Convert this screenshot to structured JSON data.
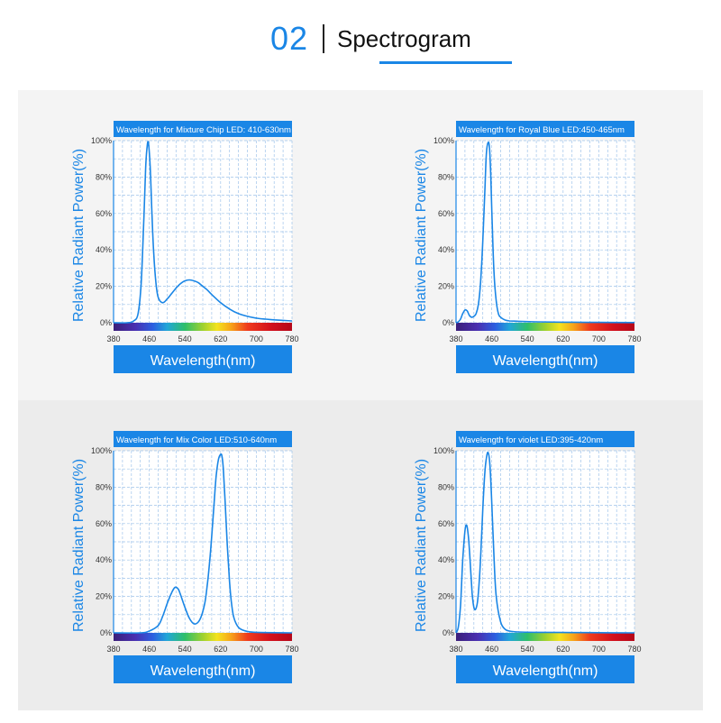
{
  "header": {
    "number": "02",
    "title": "Spectrogram"
  },
  "colors": {
    "accent": "#1a86e6",
    "panel_bg_light": "#f4f4f4",
    "panel_bg_dark": "#ececec"
  },
  "chart_data": [
    {
      "type": "line",
      "title": "Wavelength for Mixture Chip LED: 410-630nm",
      "xlabel": "Wavelength(nm)",
      "ylabel": "Relative Radiant Power(%)",
      "xlim": [
        380,
        780
      ],
      "ylim": [
        0,
        100
      ],
      "xticks": [
        "380",
        "460",
        "540",
        "620",
        "700",
        "780"
      ],
      "yticks": [
        "0%",
        "20%",
        "40%",
        "60%",
        "80%",
        "100%"
      ],
      "grid": true,
      "series": [
        {
          "x": [
            380,
            410,
            425,
            435,
            442,
            448,
            452,
            455,
            458,
            462,
            466,
            470,
            475,
            480,
            490,
            500,
            510,
            520,
            530,
            540,
            550,
            560,
            570,
            580,
            590,
            600,
            620,
            640,
            660,
            680,
            700,
            720,
            740,
            760,
            780
          ],
          "y": [
            0,
            0,
            1,
            5,
            22,
            58,
            85,
            96,
            99,
            86,
            60,
            38,
            22,
            14,
            11,
            13,
            16,
            19,
            21.5,
            23,
            23.5,
            23,
            22,
            20,
            18,
            15.5,
            11,
            7.5,
            5,
            3.5,
            2.5,
            2,
            1.6,
            1.3,
            1
          ]
        }
      ]
    },
    {
      "type": "line",
      "title": "Wavelength for Royal Blue LED:450-465nm",
      "xlabel": "Wavelength(nm)",
      "ylabel": "Relative Radiant Power(%)",
      "xlim": [
        380,
        780
      ],
      "ylim": [
        0,
        100
      ],
      "xticks": [
        "380",
        "460",
        "540",
        "620",
        "700",
        "780"
      ],
      "yticks": [
        "0%",
        "20%",
        "40%",
        "60%",
        "80%",
        "100%"
      ],
      "grid": true,
      "series": [
        {
          "x": [
            380,
            385,
            390,
            395,
            400,
            405,
            410,
            415,
            420,
            425,
            430,
            435,
            440,
            445,
            448,
            452,
            455,
            458,
            461,
            465,
            470,
            475,
            480,
            490,
            500,
            520,
            560,
            620,
            700,
            780
          ],
          "y": [
            0,
            0.5,
            2,
            5,
            7,
            6.5,
            4,
            3,
            3.5,
            5,
            10,
            22,
            45,
            75,
            93,
            99,
            96,
            80,
            55,
            28,
            12,
            5,
            3,
            1.5,
            1,
            0.8,
            0.5,
            0.3,
            0.2,
            0.1
          ]
        }
      ]
    },
    {
      "type": "line",
      "title": "Wavelength for Mix Color LED:510-640nm",
      "xlabel": "Wavelength(nm)",
      "ylabel": "Relative Radiant Power(%)",
      "xlim": [
        380,
        780
      ],
      "ylim": [
        0,
        100
      ],
      "xticks": [
        "380",
        "460",
        "540",
        "620",
        "700",
        "780"
      ],
      "yticks": [
        "0%",
        "20%",
        "40%",
        "60%",
        "80%",
        "100%"
      ],
      "grid": true,
      "series": [
        {
          "x": [
            380,
            440,
            460,
            480,
            490,
            500,
            510,
            518,
            525,
            530,
            540,
            550,
            560,
            570,
            578,
            585,
            590,
            595,
            600,
            605,
            610,
            615,
            620,
            623,
            626,
            630,
            635,
            640,
            645,
            650,
            660,
            670,
            680,
            700,
            780
          ],
          "y": [
            0,
            0,
            1,
            4,
            9,
            16,
            22,
            25,
            24,
            21,
            14,
            8,
            5,
            6,
            10,
            17,
            26,
            38,
            53,
            70,
            86,
            95,
            98,
            97,
            90,
            72,
            48,
            28,
            15,
            8,
            3,
            1.5,
            0.8,
            0.3,
            0
          ]
        }
      ]
    },
    {
      "type": "line",
      "title": "Wavelength for violet LED:395-420nm",
      "xlabel": "Wavelength(nm)",
      "ylabel": "Relative Radiant Power(%)",
      "xlim": [
        380,
        780
      ],
      "ylim": [
        0,
        100
      ],
      "xticks": [
        "380",
        "460",
        "540",
        "620",
        "700",
        "780"
      ],
      "yticks": [
        "0%",
        "20%",
        "40%",
        "60%",
        "80%",
        "100%"
      ],
      "grid": true,
      "series": [
        {
          "x": [
            380,
            385,
            390,
            395,
            400,
            404,
            408,
            412,
            416,
            420,
            424,
            428,
            432,
            436,
            440,
            444,
            448,
            452,
            456,
            460,
            465,
            470,
            480,
            490,
            500,
            520,
            560,
            620,
            700,
            780
          ],
          "y": [
            0,
            3,
            15,
            40,
            56,
            59,
            52,
            38,
            22,
            14,
            13,
            17,
            28,
            46,
            68,
            86,
            96,
            99,
            92,
            72,
            42,
            20,
            6,
            2,
            1,
            0.5,
            0.3,
            0.2,
            0.1,
            0
          ]
        }
      ]
    }
  ]
}
